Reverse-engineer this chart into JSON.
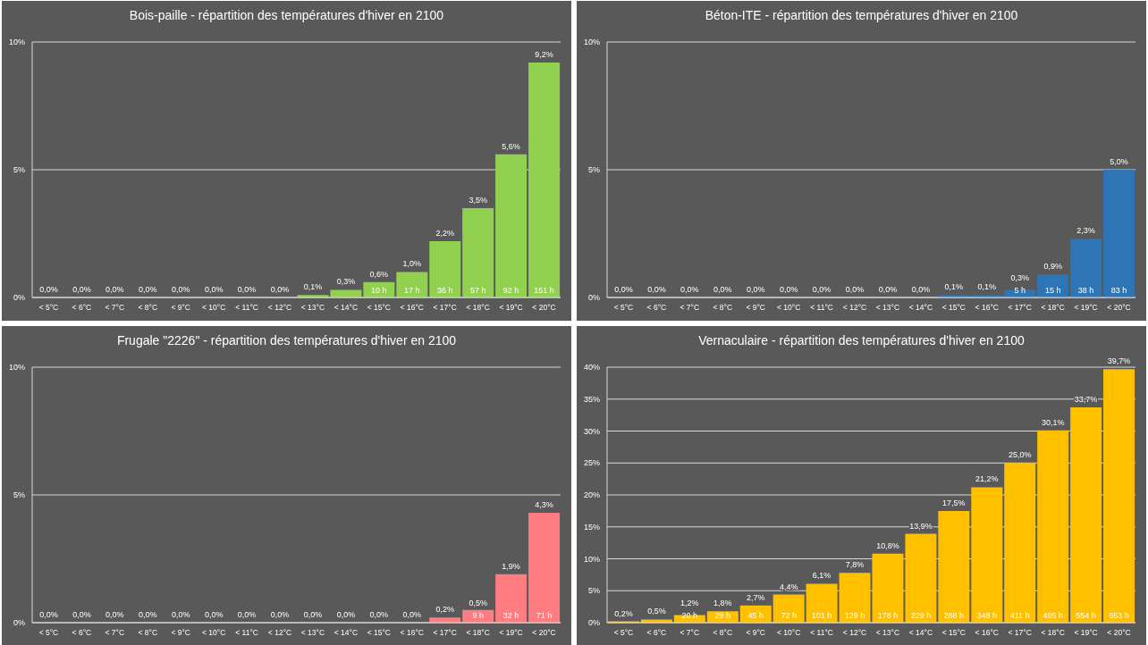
{
  "chart_data": [
    {
      "type": "bar",
      "title": "Bois-paille - répartition des températures d'hiver en 2100",
      "categories": [
        "< 5°C",
        "< 6°C",
        "< 7°C",
        "< 8°C",
        "< 9°C",
        "< 10°C",
        "< 11°C",
        "< 12°C",
        "< 13°C",
        "< 14°C",
        "< 15°C",
        "< 16°C",
        "< 17°C",
        "< 18°C",
        "< 19°C",
        "< 20°C"
      ],
      "color": "#92d050",
      "values": [
        0,
        0,
        0,
        0,
        0,
        0,
        0,
        0,
        0.1,
        0.3,
        0.6,
        1.0,
        2.2,
        3.5,
        5.6,
        9.2
      ],
      "value_labels": [
        "0,0%",
        "0,0%",
        "0,0%",
        "0,0%",
        "0,0%",
        "0,0%",
        "0,0%",
        "0,0%",
        "0,1%",
        "0,3%",
        "0,6%",
        "1,0%",
        "2,2%",
        "3,5%",
        "5,6%",
        "9,2%"
      ],
      "annotations": [
        "10 h",
        "17 h",
        "36 h",
        "57 h",
        "92 h",
        "151 h"
      ],
      "ylim": [
        0,
        10
      ],
      "yticks": [
        {
          "value": 0,
          "label": "0%"
        },
        {
          "value": 5,
          "label": "5%"
        },
        {
          "value": 10,
          "label": "10%"
        }
      ],
      "grid": "y"
    },
    {
      "type": "bar",
      "title": "Béton-ITE - répartition des températures d'hiver en 2100",
      "categories": [
        "< 5°C",
        "< 6°C",
        "< 7°C",
        "< 8°C",
        "< 9°C",
        "< 10°C",
        "< 11°C",
        "< 12°C",
        "< 13°C",
        "< 14°C",
        "< 15°C",
        "< 16°C",
        "< 17°C",
        "< 18°C",
        "< 19°C",
        "< 20°C"
      ],
      "color": "#2e75b6",
      "values": [
        0,
        0,
        0,
        0,
        0,
        0,
        0,
        0,
        0,
        0,
        0.1,
        0.1,
        0.3,
        0.9,
        2.3,
        5.0
      ],
      "value_labels": [
        "0,0%",
        "0,0%",
        "0,0%",
        "0,0%",
        "0,0%",
        "0,0%",
        "0,0%",
        "0,0%",
        "0,0%",
        "0,0%",
        "0,1%",
        "0,1%",
        "0,3%",
        "0,9%",
        "2,3%",
        "5,0%"
      ],
      "annotations": [
        "5 h",
        "15 h",
        "38 h",
        "83 h"
      ],
      "ylim": [
        0,
        10
      ],
      "yticks": [
        {
          "value": 0,
          "label": "0%"
        },
        {
          "value": 5,
          "label": "5%"
        },
        {
          "value": 10,
          "label": "10%"
        }
      ],
      "grid": "y"
    },
    {
      "type": "bar",
      "title": "Frugale \"2226\" - répartition des températures d'hiver en 2100",
      "categories": [
        "< 5°C",
        "< 6°C",
        "< 7°C",
        "< 8°C",
        "< 9°C",
        "< 10°C",
        "< 11°C",
        "< 12°C",
        "< 13°C",
        "< 14°C",
        "< 15°C",
        "< 16°C",
        "< 17°C",
        "< 18°C",
        "< 19°C",
        "< 20°C"
      ],
      "color": "#ff7c80",
      "values": [
        0,
        0,
        0,
        0,
        0,
        0,
        0,
        0,
        0,
        0,
        0,
        0,
        0.2,
        0.5,
        1.9,
        4.3
      ],
      "value_labels": [
        "0,0%",
        "0,0%",
        "0,0%",
        "0,0%",
        "0,0%",
        "0,0%",
        "0,0%",
        "0,0%",
        "0,0%",
        "0,0%",
        "0,0%",
        "0,0%",
        "0,2%",
        "0,5%",
        "1,9%",
        "4,3%"
      ],
      "annotations": [
        "9 h",
        "32 h",
        "71 h"
      ],
      "ylim": [
        0,
        10
      ],
      "yticks": [
        {
          "value": 0,
          "label": "0%"
        },
        {
          "value": 5,
          "label": "5%"
        },
        {
          "value": 10,
          "label": "10%"
        }
      ],
      "grid": "y"
    },
    {
      "type": "bar",
      "title": "Vernaculaire - répartition des températures d'hiver en 2100",
      "categories": [
        "< 5°C",
        "< 6°C",
        "< 7°C",
        "< 8°C",
        "< 9°C",
        "< 10°C",
        "< 11°C",
        "< 12°C",
        "< 13°C",
        "< 14°C",
        "< 15°C",
        "< 16°C",
        "< 17°C",
        "< 18°C",
        "< 19°C",
        "< 20°C"
      ],
      "color": "#ffc000",
      "values": [
        0.2,
        0.5,
        1.2,
        1.8,
        2.7,
        4.4,
        6.1,
        7.8,
        10.8,
        13.9,
        17.5,
        21.2,
        25.0,
        30.1,
        33.7,
        39.7
      ],
      "value_labels": [
        "0,2%",
        "0,5%",
        "1,2%",
        "1,8%",
        "2,7%",
        "4,4%",
        "6,1%",
        "7,8%",
        "10,8%",
        "13,9%",
        "17,5%",
        "21,2%",
        "25,0%",
        "30,1%",
        "33,7%",
        "39,7%"
      ],
      "annotations": [
        "20 h",
        "29 h",
        "45 h",
        "72 h",
        "101 h",
        "129 h",
        "178 h",
        "229 h",
        "288 h",
        "348 h",
        "411 h",
        "495 h",
        "554 h",
        "653 h"
      ],
      "ylim": [
        0,
        40
      ],
      "yticks": [
        {
          "value": 0,
          "label": "0%"
        },
        {
          "value": 5,
          "label": "5%"
        },
        {
          "value": 10,
          "label": "10%"
        },
        {
          "value": 15,
          "label": "15%"
        },
        {
          "value": 20,
          "label": "20%"
        },
        {
          "value": 25,
          "label": "25%"
        },
        {
          "value": 30,
          "label": "30%"
        },
        {
          "value": 35,
          "label": "35%"
        },
        {
          "value": 40,
          "label": "40%"
        }
      ],
      "grid": "y"
    }
  ]
}
